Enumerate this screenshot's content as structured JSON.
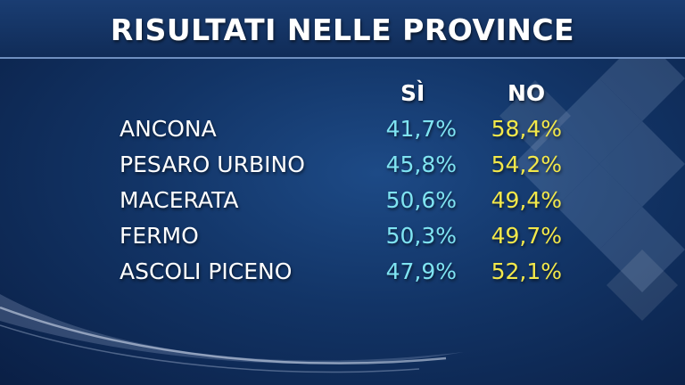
{
  "title": "RISULTATI NELLE PROVINCE",
  "columns": {
    "si": "SÌ",
    "no": "NO"
  },
  "colors": {
    "si": "#7fe4f2",
    "no": "#f3e84a",
    "text": "#ffffff",
    "background": "#123466"
  },
  "rows": [
    {
      "province": "ANCONA",
      "si": "41,7%",
      "no": "58,4%"
    },
    {
      "province": "PESARO URBINO",
      "si": "45,8%",
      "no": "54,2%"
    },
    {
      "province": "MACERATA",
      "si": "50,6%",
      "no": "49,4%"
    },
    {
      "province": "FERMO",
      "si": "50,3%",
      "no": "49,7%"
    },
    {
      "province": "ASCOLI PICENO",
      "si": "47,9%",
      "no": "52,1%"
    }
  ]
}
